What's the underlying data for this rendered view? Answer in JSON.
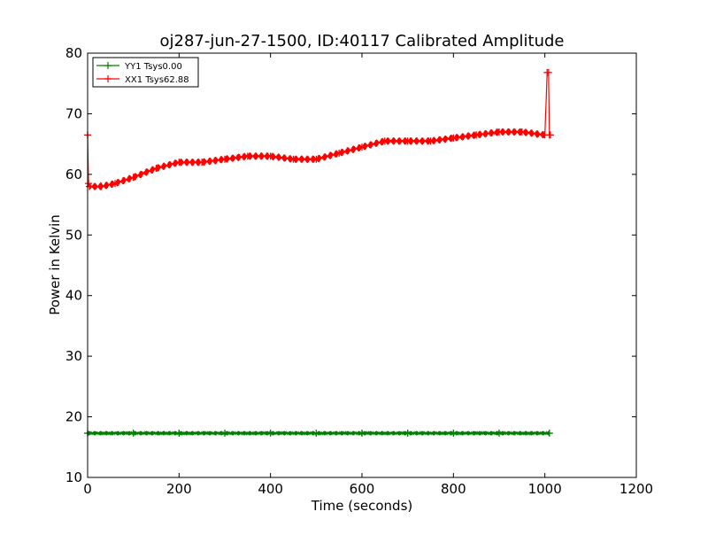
{
  "chart_data": {
    "type": "line",
    "title": "oj287-jun-27-1500, ID:40117 Calibrated Amplitude",
    "xlabel": "Time (seconds)",
    "ylabel": "Power in Kelvin",
    "xlim": [
      0,
      1200
    ],
    "ylim": [
      10,
      80
    ],
    "xticks": [
      0,
      200,
      400,
      600,
      800,
      1000,
      1200
    ],
    "yticks": [
      10,
      20,
      30,
      40,
      50,
      60,
      70,
      80
    ],
    "grid": false,
    "legend_position": "top-left",
    "series": [
      {
        "name": "YY1 Tsys0.00",
        "color": "#008000",
        "marker": "+",
        "x": [
          0,
          100,
          200,
          300,
          400,
          500,
          600,
          700,
          800,
          900,
          1010
        ],
        "values": [
          17.3,
          17.3,
          17.3,
          17.3,
          17.3,
          17.3,
          17.3,
          17.3,
          17.3,
          17.3,
          17.3
        ]
      },
      {
        "name": "XX1 Tsys62.88",
        "color": "#ff0000",
        "marker": "+",
        "x": [
          0,
          2,
          4,
          30,
          60,
          100,
          150,
          200,
          250,
          300,
          350,
          400,
          450,
          500,
          550,
          600,
          650,
          700,
          750,
          800,
          850,
          900,
          950,
          1000,
          1005,
          1008,
          1010,
          1012
        ],
        "values": [
          66.5,
          58.5,
          58.0,
          58.0,
          58.5,
          59.5,
          61.0,
          62.0,
          62.0,
          62.5,
          63.0,
          63.0,
          62.5,
          62.5,
          63.5,
          64.5,
          65.5,
          65.5,
          65.5,
          66.0,
          66.5,
          67.0,
          67.0,
          66.5,
          76.8,
          76.8,
          66.5,
          66.5
        ]
      }
    ]
  }
}
